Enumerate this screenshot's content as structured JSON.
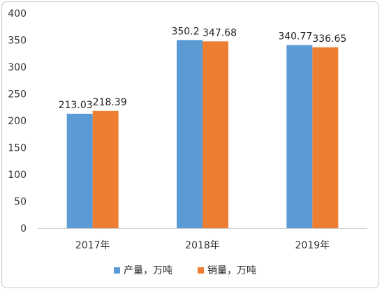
{
  "chart_data": {
    "type": "bar",
    "categories": [
      "2017年",
      "2018年",
      "2019年"
    ],
    "series": [
      {
        "name": "产量，万吨",
        "values": [
          213.03,
          350.2,
          340.77
        ],
        "value_labels": [
          "213.03",
          "350.2",
          "340.77"
        ],
        "color": "#5b9bd5"
      },
      {
        "name": "销量，万吨",
        "values": [
          218.39,
          347.68,
          336.65
        ],
        "value_labels": [
          "218.39",
          "347.68",
          "336.65"
        ],
        "color": "#ed7d31"
      }
    ],
    "yticks": [
      "0",
      "50",
      "100",
      "150",
      "200",
      "250",
      "300",
      "350",
      "400"
    ],
    "ylim": [
      0,
      400
    ],
    "grid": false,
    "legend_position": "bottom"
  }
}
